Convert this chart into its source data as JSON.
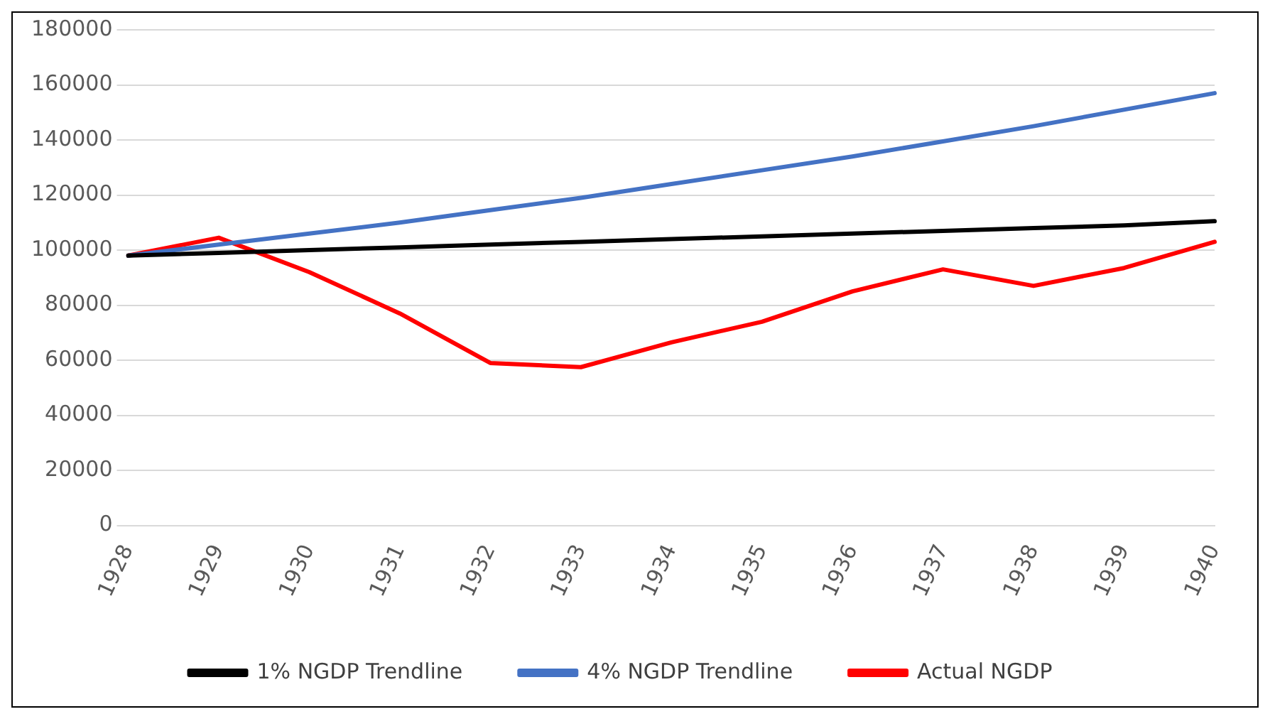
{
  "chart_data": {
    "type": "line",
    "categories": [
      "1928",
      "1929",
      "1930",
      "1931",
      "1932",
      "1933",
      "1934",
      "1935",
      "1936",
      "1937",
      "1938",
      "1939",
      "1940"
    ],
    "series": [
      {
        "name": "1% NGDP Trendline",
        "color": "#000000",
        "values": [
          98000,
          99000,
          100000,
          101000,
          102000,
          103000,
          104000,
          105000,
          106000,
          107000,
          108000,
          109000,
          110500
        ]
      },
      {
        "name": "4% NGDP Trendline",
        "color": "#4472c4",
        "values": [
          98000,
          102000,
          106000,
          110000,
          114500,
          119000,
          124000,
          129000,
          134000,
          139500,
          145000,
          151000,
          157000
        ]
      },
      {
        "name": "Actual NGDP",
        "color": "#ff0000",
        "values": [
          98000,
          104500,
          92000,
          77000,
          59000,
          57500,
          66500,
          74000,
          85000,
          93000,
          87000,
          93500,
          103000
        ]
      }
    ],
    "ylim": [
      0,
      180000
    ],
    "yticks": [
      0,
      20000,
      40000,
      60000,
      80000,
      100000,
      120000,
      140000,
      160000,
      180000
    ],
    "grid": "y",
    "legend": "bottom",
    "marker": "none",
    "line_style": "solid"
  }
}
